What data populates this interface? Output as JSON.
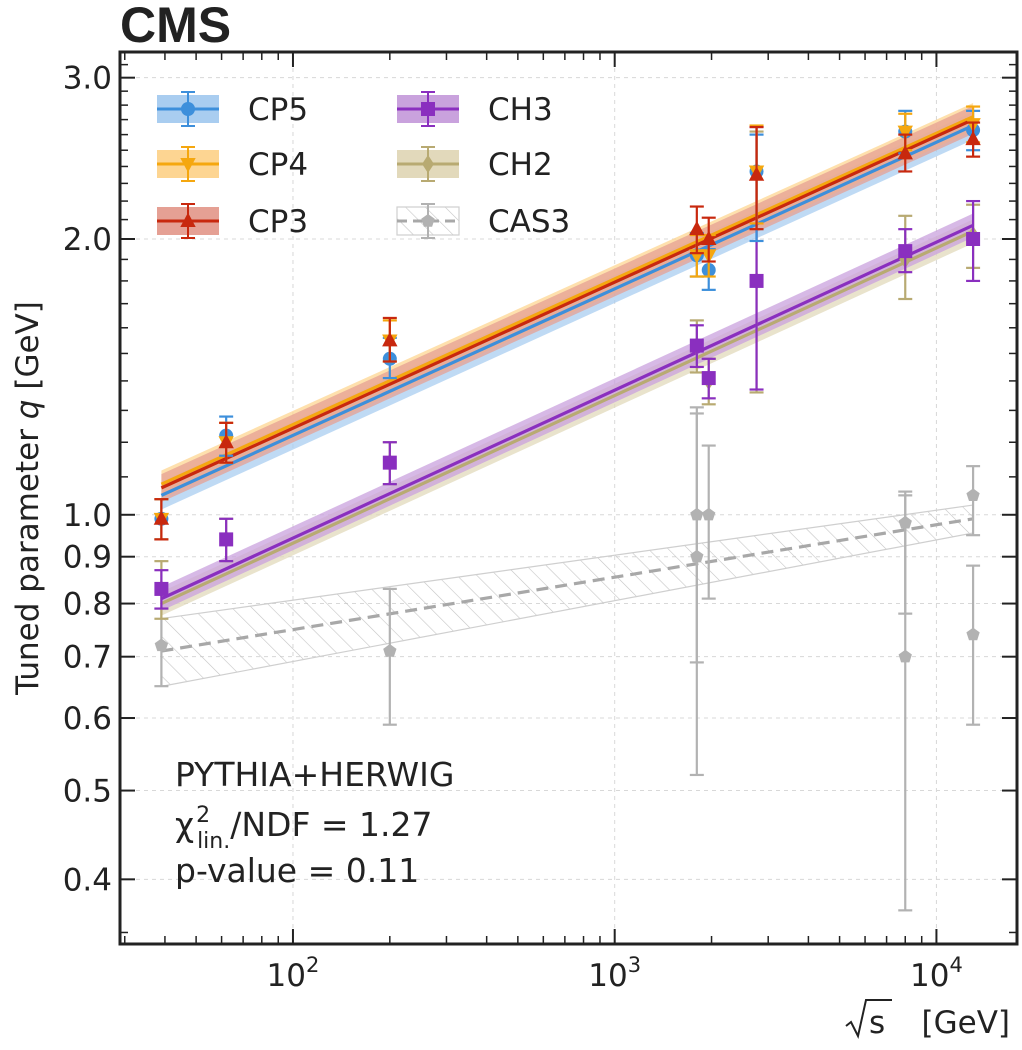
{
  "chart_data": {
    "type": "scatter",
    "experiment_label": "CMS",
    "xlabel_symbol": "s",
    "xlabel_unit": "[GeV]",
    "ylabel": "Tuned parameter",
    "ylabel_symbol": "q",
    "ylabel_unit": "[GeV]",
    "x_scale": "log",
    "y_scale": "log",
    "xlim": [
      29,
      17800
    ],
    "ylim": [
      0.34,
      3.2
    ],
    "grid": true,
    "legend_position": "top-left",
    "x_ticks": [
      {
        "value": 100,
        "base": "10",
        "exp": "2"
      },
      {
        "value": 1000,
        "base": "10",
        "exp": "3"
      },
      {
        "value": 10000,
        "base": "10",
        "exp": "4"
      }
    ],
    "y_ticks": [
      {
        "value": 0.4,
        "label": "0.4"
      },
      {
        "value": 0.5,
        "label": "0.5"
      },
      {
        "value": 0.6,
        "label": "0.6"
      },
      {
        "value": 0.7,
        "label": "0.7"
      },
      {
        "value": 0.8,
        "label": "0.8"
      },
      {
        "value": 0.9,
        "label": "0.9"
      },
      {
        "value": 1.0,
        "label": "1.0"
      },
      {
        "value": 2.0,
        "label": "2.0"
      },
      {
        "value": 3.0,
        "label": "3.0"
      }
    ],
    "annotations": {
      "generator": "PYTHIA+HERWIG",
      "chi2_symbol": "χ",
      "chi2_sup": "2",
      "chi2_sub": "lin.",
      "chi2_rest": "/NDF = 1.27",
      "pvalue": "p-value = 0.11"
    },
    "series": [
      {
        "name": "CP5",
        "color": "#3d8fdb",
        "band_color": "#a9cdf0",
        "marker": "circle",
        "fit_style": "solid",
        "offset_index": 0,
        "points": [
          {
            "x": 39,
            "y": 0.99,
            "ylo": 0.94,
            "yhi": 1.04
          },
          {
            "x": 62,
            "y": 1.22,
            "ylo": 1.16,
            "yhi": 1.28
          },
          {
            "x": 200,
            "y": 1.48,
            "ylo": 1.41,
            "yhi": 1.56
          },
          {
            "x": 1800,
            "y": 1.92,
            "ylo": 1.82,
            "yhi": 2.03
          },
          {
            "x": 1960,
            "y": 1.85,
            "ylo": 1.76,
            "yhi": 1.95
          },
          {
            "x": 2760,
            "y": 2.37,
            "ylo": 1.99,
            "yhi": 2.6
          },
          {
            "x": 8000,
            "y": 2.62,
            "ylo": 2.48,
            "yhi": 2.76
          },
          {
            "x": 13000,
            "y": 2.63,
            "ylo": 2.5,
            "yhi": 2.76
          }
        ],
        "fit": {
          "x0": 39,
          "y0": 1.05,
          "x1": 13000,
          "y1": 2.66,
          "band_rel": 0.035
        }
      },
      {
        "name": "CP4",
        "color": "#f5a70f",
        "band_color": "#fdd592",
        "marker": "triangle-down",
        "fit_style": "solid",
        "offset_index": 1,
        "points": [
          {
            "x": 39,
            "y": 0.99,
            "ylo": 0.94,
            "yhi": 1.04
          },
          {
            "x": 62,
            "y": 1.2,
            "ylo": 1.14,
            "yhi": 1.26
          },
          {
            "x": 200,
            "y": 1.55,
            "ylo": 1.47,
            "yhi": 1.63
          },
          {
            "x": 1800,
            "y": 1.92,
            "ylo": 1.82,
            "yhi": 2.02
          },
          {
            "x": 1960,
            "y": 1.92,
            "ylo": 1.82,
            "yhi": 2.02
          },
          {
            "x": 2760,
            "y": 2.37,
            "ylo": 2.08,
            "yhi": 2.66
          },
          {
            "x": 8000,
            "y": 2.62,
            "ylo": 2.5,
            "yhi": 2.74
          },
          {
            "x": 13000,
            "y": 2.67,
            "ylo": 2.55,
            "yhi": 2.79
          }
        ],
        "fit": {
          "x0": 39,
          "y0": 1.08,
          "x1": 13000,
          "y1": 2.72,
          "band_rel": 0.035
        }
      },
      {
        "name": "CP3",
        "color": "#c8280e",
        "band_color": "#e5a094",
        "marker": "triangle-up",
        "fit_style": "solid",
        "offset_index": 2,
        "points": [
          {
            "x": 39,
            "y": 0.99,
            "ylo": 0.94,
            "yhi": 1.04
          },
          {
            "x": 62,
            "y": 1.2,
            "ylo": 1.14,
            "yhi": 1.26
          },
          {
            "x": 200,
            "y": 1.55,
            "ylo": 1.47,
            "yhi": 1.64
          },
          {
            "x": 1800,
            "y": 2.05,
            "ylo": 1.93,
            "yhi": 2.17
          },
          {
            "x": 1960,
            "y": 2.0,
            "ylo": 1.89,
            "yhi": 2.11
          },
          {
            "x": 2760,
            "y": 2.35,
            "ylo": 2.05,
            "yhi": 2.65
          },
          {
            "x": 8000,
            "y": 2.48,
            "ylo": 2.37,
            "yhi": 2.6
          },
          {
            "x": 13000,
            "y": 2.57,
            "ylo": 2.46,
            "yhi": 2.68
          }
        ],
        "fit": {
          "x0": 39,
          "y0": 1.07,
          "x1": 13000,
          "y1": 2.7,
          "band_rel": 0.035
        }
      },
      {
        "name": "CH3",
        "color": "#8a2fbf",
        "band_color": "#c9a2dd",
        "marker": "square",
        "fit_style": "solid",
        "offset_index": 3,
        "points": [
          {
            "x": 39,
            "y": 0.83,
            "ylo": 0.79,
            "yhi": 0.87
          },
          {
            "x": 62,
            "y": 0.94,
            "ylo": 0.89,
            "yhi": 0.99
          },
          {
            "x": 200,
            "y": 1.14,
            "ylo": 1.08,
            "yhi": 1.2
          },
          {
            "x": 1800,
            "y": 1.53,
            "ylo": 1.45,
            "yhi": 1.61
          },
          {
            "x": 1960,
            "y": 1.41,
            "ylo": 1.34,
            "yhi": 1.48
          },
          {
            "x": 2760,
            "y": 1.8,
            "ylo": 1.37,
            "yhi": 2.65
          },
          {
            "x": 8000,
            "y": 1.94,
            "ylo": 1.84,
            "yhi": 2.05
          },
          {
            "x": 13000,
            "y": 2.0,
            "ylo": 1.8,
            "yhi": 2.2
          }
        ],
        "fit": {
          "x0": 39,
          "y0": 0.81,
          "x1": 13000,
          "y1": 2.07,
          "band_rel": 0.03
        }
      },
      {
        "name": "CH2",
        "color": "#b8aa72",
        "band_color": "#e2d9bb",
        "marker": "diamond",
        "fit_style": "solid",
        "offset_index": 4,
        "points": [
          {
            "x": 39,
            "y": 0.83,
            "ylo": 0.77,
            "yhi": 0.89
          },
          {
            "x": 62,
            "y": 0.94,
            "ylo": 0.89,
            "yhi": 0.99
          },
          {
            "x": 200,
            "y": 1.14,
            "ylo": 1.08,
            "yhi": 1.2
          },
          {
            "x": 1800,
            "y": 1.53,
            "ylo": 1.43,
            "yhi": 1.63
          },
          {
            "x": 1960,
            "y": 1.4,
            "ylo": 1.32,
            "yhi": 1.48
          },
          {
            "x": 2760,
            "y": 1.8,
            "ylo": 1.36,
            "yhi": 2.62
          },
          {
            "x": 8000,
            "y": 1.9,
            "ylo": 1.72,
            "yhi": 2.12
          },
          {
            "x": 13000,
            "y": 2.02,
            "ylo": 1.86,
            "yhi": 2.18
          }
        ],
        "fit": {
          "x0": 39,
          "y0": 0.8,
          "x1": 13000,
          "y1": 2.04,
          "band_rel": 0.03
        }
      },
      {
        "name": "CAS3",
        "color": "#b2b2b2",
        "band_color": "#d0d0d0",
        "marker": "pentagon",
        "fit_style": "dashed",
        "band_style": "hatched",
        "offset_index": 5,
        "points": [
          {
            "x": 39,
            "y": 0.72,
            "ylo": 0.65,
            "yhi": 0.79
          },
          {
            "x": 200,
            "y": 0.71,
            "ylo": 0.59,
            "yhi": 0.83
          },
          {
            "x": 1800,
            "y": 0.9,
            "ylo": 0.69,
            "yhi": 1.29
          },
          {
            "x": 1800,
            "y": 1.0,
            "ylo": 0.52,
            "yhi": 1.31
          },
          {
            "x": 1960,
            "y": 1.0,
            "ylo": 0.81,
            "yhi": 1.19
          },
          {
            "x": 8000,
            "y": 0.98,
            "ylo": 0.78,
            "yhi": 1.06
          },
          {
            "x": 8000,
            "y": 0.7,
            "ylo": 0.37,
            "yhi": 1.05
          },
          {
            "x": 13000,
            "y": 1.05,
            "ylo": 0.95,
            "yhi": 1.13
          },
          {
            "x": 13000,
            "y": 0.74,
            "ylo": 0.59,
            "yhi": 0.88
          }
        ],
        "fit": {
          "x0": 39,
          "y0": 0.71,
          "x1": 13000,
          "y1": 0.99,
          "band_rel_start": 0.085,
          "band_rel_end": 0.035
        }
      }
    ]
  }
}
